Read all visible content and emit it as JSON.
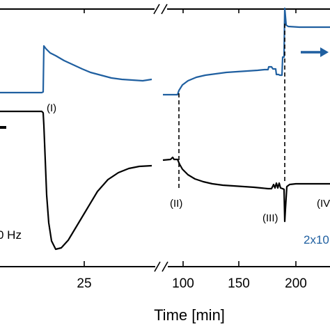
{
  "chart_data": {
    "type": "line",
    "title": "",
    "xlabel": "Time [min]",
    "ylabel": "",
    "x_tick_labels": [
      "25",
      "100",
      "150",
      "200"
    ],
    "axis_break": "//",
    "series": [
      {
        "color": "#1f5fa0",
        "points_upper": "blue-trace"
      },
      {
        "color": "#000000",
        "points_lower": "black-trace"
      }
    ],
    "annotations": {
      "event_1": "(I)",
      "event_2": "(II)",
      "event_3": "(III)",
      "event_4_partial": "(IV",
      "left_partial_text": "0 Hz",
      "right_partial_text": "2x10",
      "legend_arrow": "arrow-right"
    },
    "colors": {
      "blue": "#1f5fa0",
      "black": "#000000"
    }
  }
}
